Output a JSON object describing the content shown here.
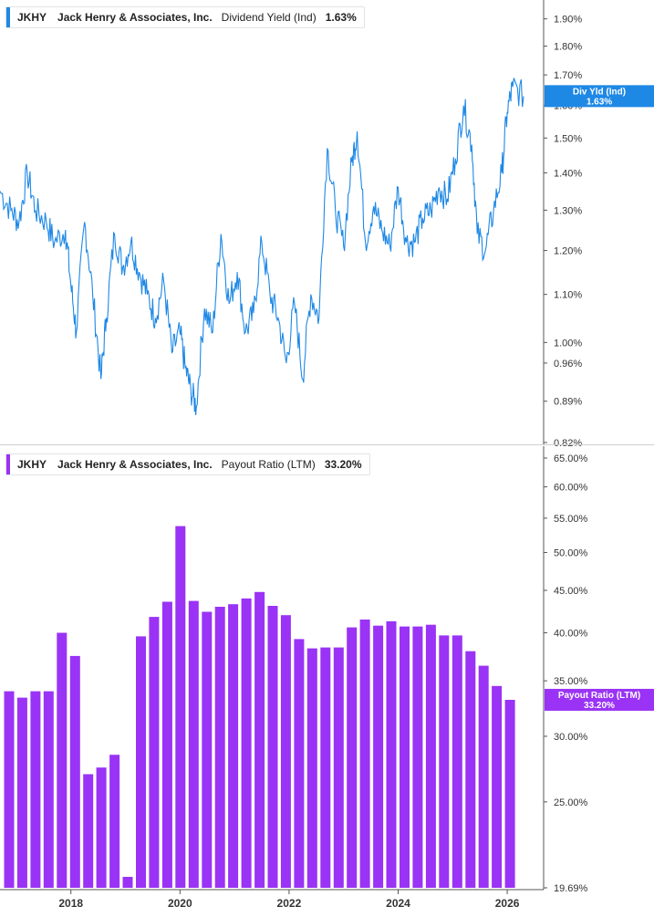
{
  "chart_data": [
    {
      "type": "line",
      "ticker": "JKHY",
      "company": "Jack Henry & Associates, Inc.",
      "metric": "Dividend Yield (Ind)",
      "latest_value": "1.63%",
      "last_value_tag": {
        "label": "Div Yld (Ind)",
        "value": "1.63%"
      },
      "color": "#1e88e5",
      "y_scale": "log",
      "ylim": [
        0.82,
        1.93
      ],
      "xlim": [
        2016.7,
        2026.4
      ],
      "ytick_labels": [
        "1.90%",
        "1.80%",
        "1.70%",
        "1.60%",
        "1.50%",
        "1.40%",
        "1.30%",
        "1.20%",
        "1.10%",
        "1.00%",
        "0.96%",
        "0.89%",
        "0.82%"
      ],
      "ytick_values": [
        1.9,
        1.8,
        1.7,
        1.6,
        1.5,
        1.4,
        1.3,
        1.2,
        1.1,
        1.0,
        0.96,
        0.89,
        0.82
      ],
      "x": [
        2016.7,
        2016.9,
        2017.05,
        2017.2,
        2017.35,
        2017.55,
        2017.7,
        2017.9,
        2018.0,
        2018.1,
        2018.25,
        2018.4,
        2018.55,
        2018.65,
        2018.8,
        2018.95,
        2019.1,
        2019.25,
        2019.4,
        2019.55,
        2019.7,
        2019.85,
        2020.0,
        2020.1,
        2020.2,
        2020.3,
        2020.45,
        2020.6,
        2020.75,
        2020.9,
        2021.05,
        2021.2,
        2021.35,
        2021.5,
        2021.65,
        2021.8,
        2021.95,
        2022.1,
        2022.25,
        2022.4,
        2022.55,
        2022.7,
        2022.85,
        2023.0,
        2023.15,
        2023.25,
        2023.4,
        2023.55,
        2023.7,
        2023.85,
        2024.0,
        2024.15,
        2024.3,
        2024.45,
        2024.6,
        2024.75,
        2024.9,
        2025.05,
        2025.2,
        2025.35,
        2025.45,
        2025.6,
        2025.75,
        2025.9,
        2026.0,
        2026.1,
        2026.3
      ],
      "values": [
        1.35,
        1.3,
        1.27,
        1.4,
        1.3,
        1.27,
        1.22,
        1.25,
        1.12,
        1.02,
        1.27,
        1.1,
        0.93,
        1.05,
        1.24,
        1.16,
        1.22,
        1.15,
        1.1,
        1.05,
        1.13,
        0.98,
        1.02,
        0.95,
        0.91,
        0.88,
        1.07,
        1.02,
        1.24,
        1.08,
        1.15,
        1.02,
        1.06,
        1.22,
        1.1,
        1.05,
        0.96,
        1.08,
        0.93,
        1.1,
        1.05,
        1.47,
        1.3,
        1.21,
        1.43,
        1.52,
        1.22,
        1.31,
        1.25,
        1.21,
        1.36,
        1.22,
        1.22,
        1.28,
        1.3,
        1.36,
        1.33,
        1.44,
        1.6,
        1.48,
        1.24,
        1.2,
        1.3,
        1.4,
        1.58,
        1.66,
        1.63
      ]
    },
    {
      "type": "bar",
      "ticker": "JKHY",
      "company": "Jack Henry & Associates, Inc.",
      "metric": "Payout Ratio (LTM)",
      "latest_value": "33.20%",
      "last_value_tag": {
        "label": "Payout Ratio (LTM)",
        "value": "33.20%"
      },
      "color": "#9a33f5",
      "y_scale": "log",
      "ylim": [
        19.69,
        65.0
      ],
      "ytick_labels": [
        "65.00%",
        "60.00%",
        "55.00%",
        "50.00%",
        "45.00%",
        "40.00%",
        "35.00%",
        "30.00%",
        "25.00%",
        "19.69%"
      ],
      "ytick_values": [
        65,
        60,
        55,
        50,
        45,
        40,
        35,
        30,
        25,
        19.69
      ],
      "x_tick_labels": [
        "2018",
        "2020",
        "2022",
        "2024",
        "2026"
      ],
      "x_tick_values": [
        2018,
        2020,
        2022,
        2024,
        2026
      ],
      "categories": [
        "2016Q3",
        "2016Q4",
        "2017Q1",
        "2017Q2",
        "2017Q3",
        "2017Q4",
        "2018Q1",
        "2018Q2",
        "2018Q3",
        "2018Q4",
        "2019Q1",
        "2019Q2",
        "2019Q3",
        "2019Q4",
        "2020Q1",
        "2020Q2",
        "2020Q3",
        "2020Q4",
        "2021Q1",
        "2021Q2",
        "2021Q3",
        "2021Q4",
        "2022Q1",
        "2022Q2",
        "2022Q3",
        "2022Q4",
        "2023Q1",
        "2023Q2",
        "2023Q3",
        "2023Q4",
        "2024Q1",
        "2024Q2",
        "2024Q3",
        "2024Q4",
        "2025Q1",
        "2025Q2",
        "2025Q3",
        "2025Q4",
        "2026Q1"
      ],
      "values": [
        34.0,
        33.4,
        34.0,
        34.0,
        40.0,
        37.5,
        27.0,
        27.5,
        28.5,
        20.3,
        39.6,
        41.8,
        43.6,
        53.8,
        43.7,
        42.4,
        43.0,
        43.3,
        44.0,
        44.8,
        43.1,
        42.0,
        39.3,
        38.3,
        38.4,
        38.4,
        40.6,
        41.5,
        40.8,
        41.3,
        40.7,
        40.7,
        40.9,
        39.7,
        39.7,
        38.0,
        36.5,
        34.5,
        33.2
      ]
    }
  ]
}
